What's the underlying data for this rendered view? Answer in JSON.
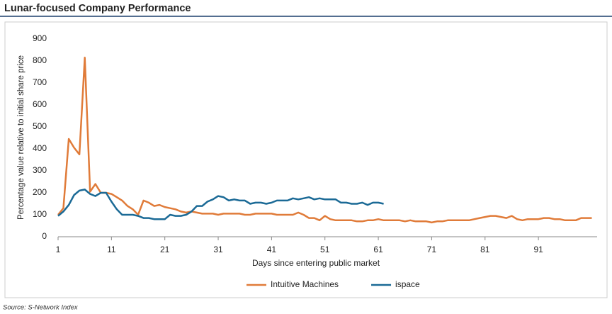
{
  "chart_data": {
    "type": "line",
    "title": "Lunar-focused Company Performance",
    "y_label": "Percentage value relative to initial share price",
    "x_label": "Days since entering public market",
    "source": "Source: S-Network Index",
    "x": [
      1,
      2,
      3,
      4,
      5,
      6,
      7,
      8,
      9,
      10,
      11,
      12,
      13,
      14,
      15,
      16,
      17,
      18,
      19,
      20,
      21,
      22,
      23,
      24,
      25,
      26,
      27,
      28,
      29,
      30,
      31,
      32,
      33,
      34,
      35,
      36,
      37,
      38,
      39,
      40,
      41,
      42,
      43,
      44,
      45,
      46,
      47,
      48,
      49,
      50,
      51,
      52,
      53,
      54,
      55,
      56,
      57,
      58,
      59,
      60,
      61,
      62,
      63,
      64,
      65,
      66,
      67,
      68,
      69,
      70,
      71,
      72,
      73,
      74,
      75,
      76,
      77,
      78,
      79,
      80,
      81,
      82,
      83,
      84,
      85,
      86,
      87,
      88,
      89,
      90,
      91,
      92,
      93,
      94,
      95,
      96,
      97,
      98,
      99,
      100,
      101
    ],
    "series": [
      {
        "name": "Intuitive Machines",
        "color": "#e07b39",
        "values": [
          100,
          130,
          445,
          405,
          375,
          815,
          205,
          240,
          200,
          200,
          195,
          180,
          165,
          140,
          125,
          100,
          165,
          155,
          140,
          145,
          135,
          130,
          125,
          115,
          110,
          115,
          110,
          105,
          105,
          105,
          100,
          105,
          105,
          105,
          105,
          100,
          100,
          105,
          105,
          105,
          105,
          100,
          100,
          100,
          100,
          110,
          100,
          85,
          85,
          75,
          95,
          80,
          75,
          75,
          75,
          75,
          70,
          70,
          75,
          75,
          80,
          75,
          75,
          75,
          75,
          70,
          75,
          70,
          70,
          70,
          65,
          70,
          70,
          75,
          75,
          75,
          75,
          75,
          80,
          85,
          90,
          95,
          95,
          90,
          85,
          95,
          80,
          75,
          80,
          80,
          80,
          85,
          85,
          80,
          80,
          75,
          75,
          75,
          85,
          85,
          85
        ]
      },
      {
        "name": "ispace",
        "color": "#1b6a96",
        "values": [
          95,
          115,
          145,
          190,
          210,
          215,
          195,
          185,
          200,
          200,
          160,
          125,
          100,
          100,
          100,
          95,
          85,
          85,
          80,
          80,
          80,
          100,
          95,
          95,
          100,
          115,
          140,
          140,
          160,
          170,
          185,
          180,
          165,
          170,
          165,
          165,
          150,
          155,
          155,
          150,
          155,
          165,
          165,
          165,
          175,
          170,
          175,
          180,
          170,
          175,
          170,
          170,
          170,
          155,
          155,
          150,
          150,
          155,
          145,
          155,
          155,
          150,
          null,
          null,
          null,
          null,
          null,
          null,
          null,
          null,
          null,
          null,
          null,
          null,
          null,
          null,
          null,
          null,
          null,
          null,
          null,
          null,
          null,
          null,
          null,
          null,
          null,
          null,
          null,
          null,
          null,
          null,
          null,
          null,
          null,
          null,
          null,
          null,
          null,
          null,
          null
        ]
      }
    ],
    "xlim": [
      1,
      102
    ],
    "xticks": [
      1,
      11,
      21,
      31,
      41,
      51,
      61,
      71,
      81,
      91
    ],
    "ylim": [
      0,
      900
    ],
    "yticks": [
      0,
      100,
      200,
      300,
      400,
      500,
      600,
      700,
      800,
      900
    ],
    "grid": false
  }
}
